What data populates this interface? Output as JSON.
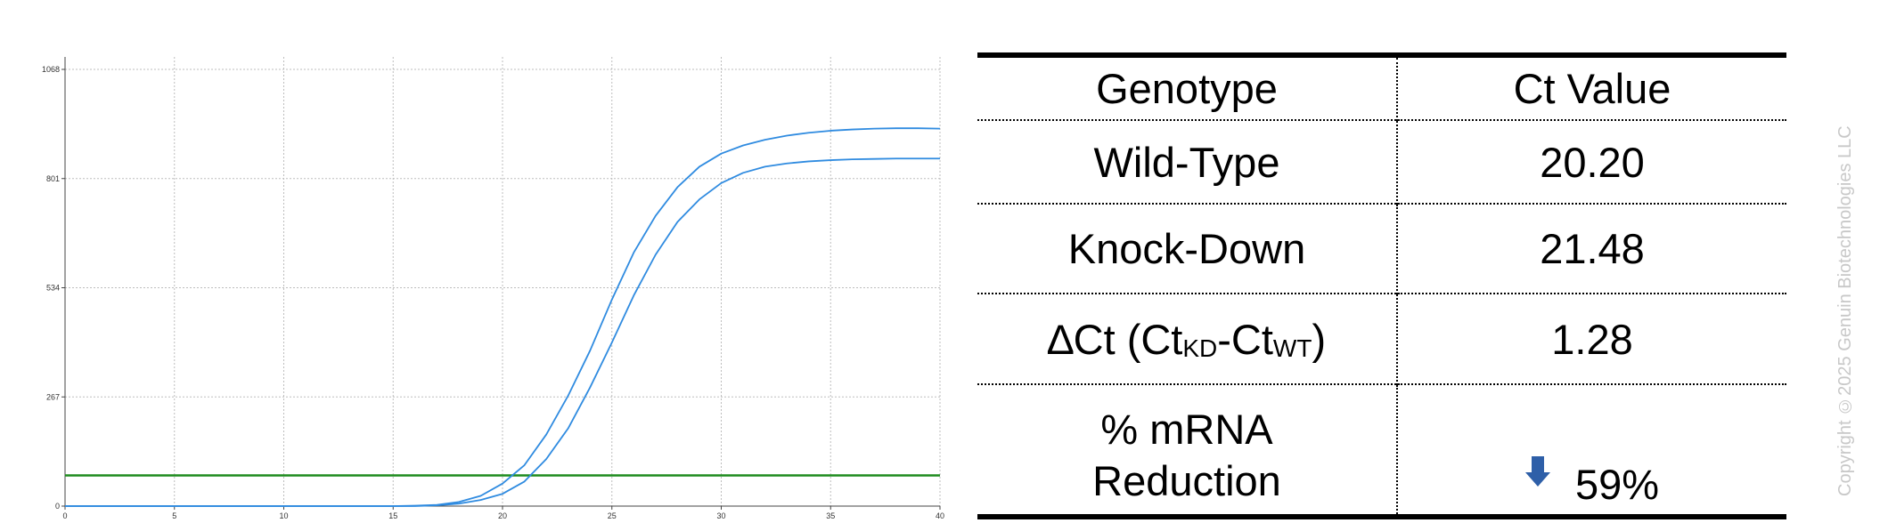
{
  "chart_data": {
    "type": "line",
    "x_ticks": [
      0,
      5,
      10,
      15,
      20,
      25,
      30,
      35,
      40
    ],
    "y_ticks": [
      0,
      267,
      534,
      801,
      1068
    ],
    "xlim": [
      0,
      40
    ],
    "ylim": [
      0,
      1068
    ],
    "grid": true,
    "threshold": 75,
    "series": [
      {
        "x": [
          0,
          15,
          16,
          17,
          18,
          19,
          20,
          21,
          22,
          23,
          24,
          25,
          26,
          27,
          28,
          29,
          30,
          31,
          32,
          33,
          34,
          35,
          36,
          37,
          38,
          39,
          40
        ],
        "values": [
          0,
          0,
          1,
          3,
          10,
          25,
          55,
          100,
          175,
          270,
          380,
          505,
          620,
          710,
          780,
          830,
          862,
          882,
          896,
          906,
          913,
          918,
          921,
          923,
          924,
          924,
          923
        ]
      },
      {
        "x": [
          0,
          16,
          17,
          18,
          19,
          20,
          21,
          22,
          23,
          24,
          25,
          26,
          27,
          28,
          29,
          30,
          31,
          32,
          33,
          34,
          35,
          36,
          37,
          38,
          39,
          40
        ],
        "values": [
          0,
          0,
          2,
          6,
          15,
          30,
          60,
          115,
          190,
          290,
          400,
          515,
          615,
          695,
          750,
          790,
          815,
          830,
          838,
          843,
          846,
          848,
          849,
          850,
          850,
          850
        ]
      }
    ],
    "colors": {
      "curve": "#2f8be0",
      "threshold": "#1e8c1e",
      "grid": "#bdbdbd",
      "axis": "#444444"
    }
  },
  "table": {
    "header": [
      "Genotype",
      "Ct Value"
    ],
    "rows": [
      {
        "label": "Wild-Type",
        "value": "20.20"
      },
      {
        "label": "Knock-Down",
        "value": "21.48"
      },
      {
        "label_prefix": "∆Ct (Ct",
        "label_sub1": "KD",
        "label_mid": "-Ct",
        "label_sub2": "WT",
        "label_suffix": ")",
        "value": "1.28"
      },
      {
        "label_line1": "% mRNA",
        "label_line2": "Reduction",
        "value": "59%",
        "icon": "down-arrow-icon"
      }
    ]
  },
  "copyright": "Copyright ©2025 Genuin Biotechnologies LLC"
}
